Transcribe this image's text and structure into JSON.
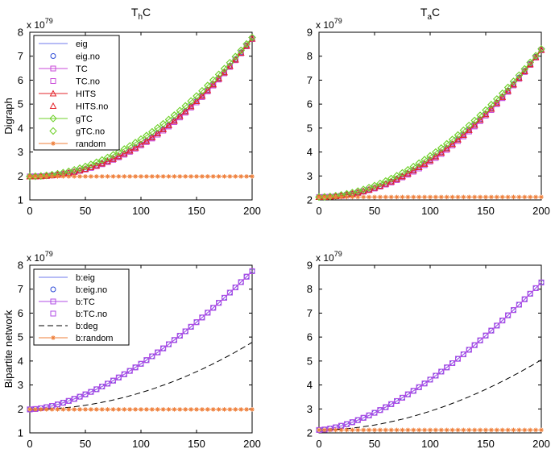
{
  "figure": {
    "row_labels": [
      "Digraph",
      "Bipartite network"
    ]
  },
  "chart_data": [
    {
      "type": "line",
      "title": "ThC",
      "title_main": "T",
      "title_sub": "h",
      "title_tail": "C",
      "ylabel": "Digraph",
      "xlim": [
        0,
        200
      ],
      "ylim": [
        1,
        8
      ],
      "xticks": [
        0,
        50,
        100,
        150,
        200
      ],
      "yticks": [
        1,
        2,
        3,
        4,
        5,
        6,
        7,
        8
      ],
      "multiplier_base": "x 10",
      "multiplier_exp": "79",
      "legend_position": "top-left",
      "series": [
        {
          "name": "eig",
          "color": "#6f79ee",
          "style": "line",
          "marker": "none",
          "start": 1.98,
          "end": 7.75,
          "curve": 2.1
        },
        {
          "name": "eig.no",
          "color": "#2b49d6",
          "style": "none",
          "marker": "circle",
          "start": 1.98,
          "end": 7.75,
          "curve": 2.1
        },
        {
          "name": "TC",
          "color": "#c84ad8",
          "style": "line",
          "marker": "square",
          "start": 1.98,
          "end": 7.72,
          "curve": 2.15
        },
        {
          "name": "TC.no",
          "color": "#c84ad8",
          "style": "none",
          "marker": "square",
          "start": 1.98,
          "end": 7.72,
          "curve": 2.15
        },
        {
          "name": "HITS",
          "color": "#e3242b",
          "style": "line",
          "marker": "triangle",
          "start": 1.98,
          "end": 7.73,
          "curve": 2.1
        },
        {
          "name": "HITS.no",
          "color": "#e3242b",
          "style": "none",
          "marker": "triangle",
          "start": 1.98,
          "end": 7.73,
          "curve": 2.1
        },
        {
          "name": "gTC",
          "color": "#6fd12a",
          "style": "line",
          "marker": "diamond",
          "start": 1.98,
          "end": 7.78,
          "curve": 1.9
        },
        {
          "name": "gTC.no",
          "color": "#6fd12a",
          "style": "none",
          "marker": "diamond",
          "start": 1.98,
          "end": 7.78,
          "curve": 1.9
        },
        {
          "name": "random",
          "color": "#ef7f3a",
          "style": "line",
          "marker": "star",
          "start": 1.98,
          "end": 1.98,
          "curve": 1
        }
      ]
    },
    {
      "type": "line",
      "title": "TaC",
      "title_main": "T",
      "title_sub": "a",
      "title_tail": "C",
      "ylabel": "",
      "xlim": [
        0,
        200
      ],
      "ylim": [
        2,
        9
      ],
      "xticks": [
        0,
        50,
        100,
        150,
        200
      ],
      "yticks": [
        2,
        3,
        4,
        5,
        6,
        7,
        8,
        9
      ],
      "multiplier_base": "x 10",
      "multiplier_exp": "79",
      "series": [
        {
          "name": "eig",
          "color": "#6f79ee",
          "style": "line",
          "marker": "none",
          "start": 2.12,
          "end": 8.28,
          "curve": 2.0
        },
        {
          "name": "eig.no",
          "color": "#2b49d6",
          "style": "none",
          "marker": "circle",
          "start": 2.12,
          "end": 8.28,
          "curve": 2.0
        },
        {
          "name": "TC",
          "color": "#c84ad8",
          "style": "line",
          "marker": "square",
          "start": 2.12,
          "end": 8.25,
          "curve": 2.05
        },
        {
          "name": "TC.no",
          "color": "#c84ad8",
          "style": "none",
          "marker": "square",
          "start": 2.12,
          "end": 8.25,
          "curve": 2.05
        },
        {
          "name": "HITS",
          "color": "#e3242b",
          "style": "line",
          "marker": "triangle",
          "start": 2.12,
          "end": 8.26,
          "curve": 2.0
        },
        {
          "name": "HITS.no",
          "color": "#e3242b",
          "style": "none",
          "marker": "triangle",
          "start": 2.12,
          "end": 8.26,
          "curve": 2.0
        },
        {
          "name": "gTC",
          "color": "#6fd12a",
          "style": "line",
          "marker": "diamond",
          "start": 2.12,
          "end": 8.3,
          "curve": 1.85
        },
        {
          "name": "gTC.no",
          "color": "#6fd12a",
          "style": "none",
          "marker": "diamond",
          "start": 2.12,
          "end": 8.3,
          "curve": 1.85
        },
        {
          "name": "random",
          "color": "#ef7f3a",
          "style": "line",
          "marker": "star",
          "start": 2.12,
          "end": 2.12,
          "curve": 1
        }
      ]
    },
    {
      "type": "line",
      "title": "",
      "ylabel": "Bipartite network",
      "xlim": [
        0,
        200
      ],
      "ylim": [
        1,
        8
      ],
      "xticks": [
        0,
        50,
        100,
        150,
        200
      ],
      "yticks": [
        1,
        2,
        3,
        4,
        5,
        6,
        7,
        8
      ],
      "multiplier_base": "x 10",
      "multiplier_exp": "79",
      "legend_position": "top-left",
      "series": [
        {
          "name": "b:eig",
          "color": "#6f79ee",
          "style": "line",
          "marker": "none",
          "start": 1.98,
          "end": 7.75,
          "curve": 1.6
        },
        {
          "name": "b:eig.no",
          "color": "#2b49d6",
          "style": "none",
          "marker": "circle",
          "start": 1.98,
          "end": 7.75,
          "curve": 1.6
        },
        {
          "name": "b:TC",
          "color": "#b14ee6",
          "style": "line",
          "marker": "square",
          "start": 1.98,
          "end": 7.75,
          "curve": 1.6
        },
        {
          "name": "b:TC.no",
          "color": "#b14ee6",
          "style": "none",
          "marker": "square",
          "start": 1.98,
          "end": 7.75,
          "curve": 1.6
        },
        {
          "name": "b:deg",
          "color": "#000000",
          "style": "dash",
          "marker": "none",
          "start": 1.98,
          "end": 4.78,
          "curve": 2.0
        },
        {
          "name": "b:random",
          "color": "#ef7f3a",
          "style": "line",
          "marker": "star",
          "start": 1.98,
          "end": 1.98,
          "curve": 1
        }
      ]
    },
    {
      "type": "line",
      "title": "",
      "ylabel": "",
      "xlim": [
        0,
        200
      ],
      "ylim": [
        2,
        9
      ],
      "xticks": [
        0,
        50,
        100,
        150,
        200
      ],
      "yticks": [
        2,
        3,
        4,
        5,
        6,
        7,
        8,
        9
      ],
      "multiplier_base": "x 10",
      "multiplier_exp": "79",
      "series": [
        {
          "name": "b:eig",
          "color": "#6f79ee",
          "style": "line",
          "marker": "none",
          "start": 2.12,
          "end": 8.28,
          "curve": 1.55
        },
        {
          "name": "b:eig.no",
          "color": "#2b49d6",
          "style": "none",
          "marker": "circle",
          "start": 2.12,
          "end": 8.28,
          "curve": 1.55
        },
        {
          "name": "b:TC",
          "color": "#b14ee6",
          "style": "line",
          "marker": "square",
          "start": 2.12,
          "end": 8.28,
          "curve": 1.55
        },
        {
          "name": "b:TC.no",
          "color": "#b14ee6",
          "style": "none",
          "marker": "square",
          "start": 2.12,
          "end": 8.28,
          "curve": 1.55
        },
        {
          "name": "b:deg",
          "color": "#000000",
          "style": "dash",
          "marker": "none",
          "start": 2.12,
          "end": 5.05,
          "curve": 1.9
        },
        {
          "name": "b:random",
          "color": "#ef7f3a",
          "style": "line",
          "marker": "star",
          "start": 2.12,
          "end": 2.12,
          "curve": 1
        }
      ]
    }
  ]
}
